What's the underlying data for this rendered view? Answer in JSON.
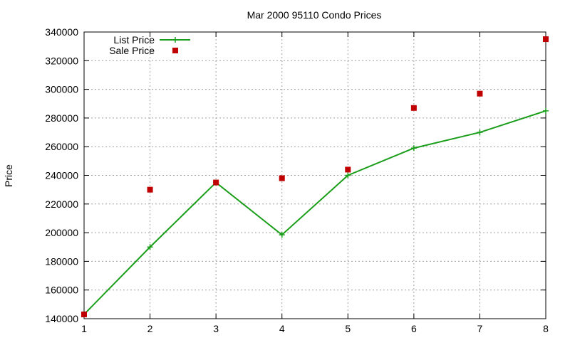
{
  "chart_data": {
    "type": "line",
    "title": "Mar 2000 95110 Condo Prices",
    "xlabel": "",
    "ylabel": "Price",
    "x": [
      1,
      2,
      3,
      4,
      5,
      6,
      7,
      8
    ],
    "xlim": [
      1,
      8
    ],
    "ylim": [
      140000,
      340000
    ],
    "xticks": [
      "1",
      "2",
      "3",
      "4",
      "5",
      "6",
      "7",
      "8"
    ],
    "yticks": [
      "140000",
      "160000",
      "180000",
      "200000",
      "220000",
      "240000",
      "260000",
      "280000",
      "300000",
      "320000",
      "340000"
    ],
    "grid": true,
    "legend_position": "top-left",
    "series": [
      {
        "name": "List Price",
        "style": "linespoints",
        "marker": "plus",
        "color": "#1a9e1a",
        "values": [
          143000,
          190000,
          235000,
          198500,
          240000,
          259000,
          270000,
          285000
        ]
      },
      {
        "name": "Sale Price",
        "style": "points",
        "marker": "square",
        "color": "#c00000",
        "values": [
          143000,
          230000,
          235000,
          238000,
          244000,
          287000,
          297000,
          335000
        ]
      }
    ]
  }
}
